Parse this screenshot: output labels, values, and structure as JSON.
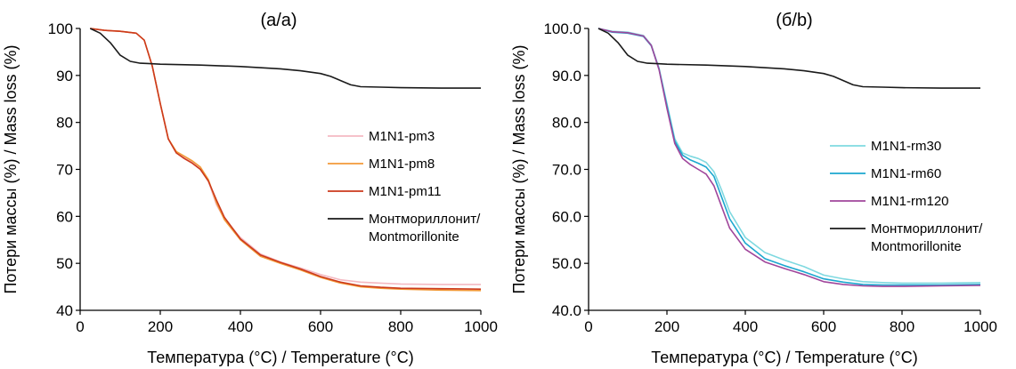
{
  "chart_data": [
    {
      "type": "line",
      "title": "(a/a)",
      "xlabel": "Температура (°C) / Temperature (°C)",
      "ylabel": "Потери массы (%) / Mass loss (%)",
      "xlim": [
        0,
        1000
      ],
      "ylim": [
        40,
        100
      ],
      "xticks": [
        "0",
        "200",
        "400",
        "600",
        "800",
        "1000"
      ],
      "yticks": [
        "40",
        "50",
        "60",
        "70",
        "80",
        "90",
        "100"
      ],
      "legend_position": "center-right",
      "grid": false,
      "series": [
        {
          "name": "M1N1-pm3",
          "color": "#f4b9c2",
          "x": [
            25,
            60,
            100,
            140,
            160,
            180,
            200,
            220,
            240,
            260,
            280,
            300,
            320,
            340,
            360,
            400,
            450,
            500,
            550,
            600,
            650,
            700,
            750,
            800,
            900,
            1000
          ],
          "y": [
            100,
            99.6,
            99.4,
            99.0,
            97.5,
            92.0,
            84.0,
            76.5,
            73.5,
            72.5,
            71.5,
            70.2,
            67.5,
            62.5,
            59.5,
            55.5,
            52.0,
            50.3,
            49.0,
            47.6,
            46.5,
            46.0,
            45.8,
            45.6,
            45.5,
            45.5
          ]
        },
        {
          "name": "M1N1-pm8",
          "color": "#f29a38",
          "x": [
            25,
            60,
            100,
            140,
            160,
            180,
            200,
            220,
            240,
            260,
            280,
            300,
            320,
            340,
            360,
            400,
            450,
            500,
            550,
            600,
            650,
            700,
            750,
            800,
            900,
            1000
          ],
          "y": [
            100,
            99.6,
            99.4,
            99.0,
            97.5,
            92.0,
            84.0,
            76.5,
            73.8,
            72.8,
            71.8,
            70.5,
            67.8,
            63.0,
            59.3,
            55.0,
            51.5,
            50.0,
            48.6,
            47.0,
            45.8,
            45.0,
            44.7,
            44.5,
            44.3,
            44.2
          ]
        },
        {
          "name": "M1N1-pm11",
          "color": "#cc3a1c",
          "x": [
            25,
            60,
            100,
            140,
            160,
            180,
            200,
            220,
            240,
            260,
            280,
            300,
            320,
            340,
            360,
            400,
            450,
            500,
            550,
            600,
            650,
            700,
            750,
            800,
            900,
            1000
          ],
          "y": [
            100,
            99.6,
            99.4,
            99.0,
            97.5,
            92.0,
            84.0,
            76.5,
            73.5,
            72.3,
            71.3,
            70.0,
            67.5,
            63.5,
            59.8,
            55.2,
            51.8,
            50.2,
            48.8,
            47.2,
            46.0,
            45.2,
            44.9,
            44.7,
            44.6,
            44.5
          ]
        },
        {
          "name": "Монтмориллонит/ Montmorillonite",
          "color": "#1a1a1a",
          "x": [
            25,
            50,
            75,
            100,
            125,
            150,
            175,
            200,
            300,
            400,
            500,
            550,
            600,
            625,
            650,
            675,
            700,
            750,
            800,
            900,
            1000
          ],
          "y": [
            100,
            99.0,
            97.0,
            94.3,
            93.0,
            92.6,
            92.5,
            92.4,
            92.2,
            91.9,
            91.4,
            91.0,
            90.4,
            89.8,
            88.9,
            88.0,
            87.6,
            87.5,
            87.4,
            87.3,
            87.3
          ]
        }
      ]
    },
    {
      "type": "line",
      "title": "(б/b)",
      "xlabel": "Температура (°C) / Temperature (°C)",
      "ylabel": "Потери массы (%) / Mass loss (%)",
      "xlim": [
        0,
        1000
      ],
      "ylim": [
        40,
        100
      ],
      "xticks": [
        "0",
        "200",
        "400",
        "600",
        "800",
        "1000"
      ],
      "yticks": [
        "40.0",
        "50.0",
        "60.0",
        "70.0",
        "80.0",
        "90.0",
        "100.0"
      ],
      "legend_position": "center-right",
      "grid": false,
      "series": [
        {
          "name": "M1N1-rm30",
          "color": "#7fd9e0",
          "x": [
            25,
            60,
            100,
            140,
            160,
            180,
            200,
            220,
            240,
            260,
            280,
            300,
            320,
            340,
            360,
            400,
            450,
            500,
            550,
            600,
            650,
            700,
            750,
            800,
            900,
            1000
          ],
          "y": [
            100,
            99.4,
            99.2,
            98.5,
            96.5,
            91.5,
            84.0,
            76.5,
            73.5,
            72.8,
            72.3,
            71.5,
            69.5,
            65.5,
            61.0,
            55.5,
            52.3,
            50.7,
            49.3,
            47.5,
            46.7,
            46.1,
            45.9,
            45.8,
            45.8,
            45.9
          ]
        },
        {
          "name": "M1N1-rm60",
          "color": "#1ca7cf",
          "x": [
            25,
            60,
            100,
            140,
            160,
            180,
            200,
            220,
            240,
            260,
            280,
            300,
            320,
            340,
            360,
            400,
            450,
            500,
            550,
            600,
            650,
            700,
            750,
            800,
            900,
            1000
          ],
          "y": [
            100,
            99.2,
            99.0,
            98.3,
            96.3,
            91.3,
            83.5,
            76.0,
            73.0,
            72.0,
            71.3,
            70.5,
            68.5,
            64.0,
            59.5,
            54.3,
            51.0,
            49.5,
            48.2,
            46.7,
            46.0,
            45.5,
            45.4,
            45.4,
            45.4,
            45.5
          ]
        },
        {
          "name": "M1N1-rm120",
          "color": "#a0469b",
          "x": [
            25,
            60,
            100,
            140,
            160,
            180,
            200,
            220,
            240,
            260,
            280,
            300,
            320,
            340,
            360,
            400,
            450,
            500,
            550,
            600,
            650,
            700,
            750,
            800,
            900,
            1000
          ],
          "y": [
            100,
            99.3,
            99.1,
            98.4,
            96.4,
            91.2,
            83.0,
            75.5,
            72.3,
            71.0,
            70.0,
            69.0,
            66.5,
            62.0,
            57.5,
            53.0,
            50.3,
            48.9,
            47.6,
            46.1,
            45.5,
            45.2,
            45.1,
            45.1,
            45.2,
            45.3
          ]
        },
        {
          "name": "Монтмориллонит/ Montmorillonite",
          "color": "#1a1a1a",
          "x": [
            25,
            50,
            75,
            100,
            125,
            150,
            175,
            200,
            300,
            400,
            500,
            550,
            600,
            625,
            650,
            675,
            700,
            750,
            800,
            900,
            1000
          ],
          "y": [
            100,
            99.0,
            97.0,
            94.3,
            93.0,
            92.6,
            92.5,
            92.4,
            92.2,
            91.9,
            91.4,
            91.0,
            90.4,
            89.8,
            88.9,
            88.0,
            87.6,
            87.5,
            87.4,
            87.3,
            87.3
          ]
        }
      ]
    }
  ]
}
